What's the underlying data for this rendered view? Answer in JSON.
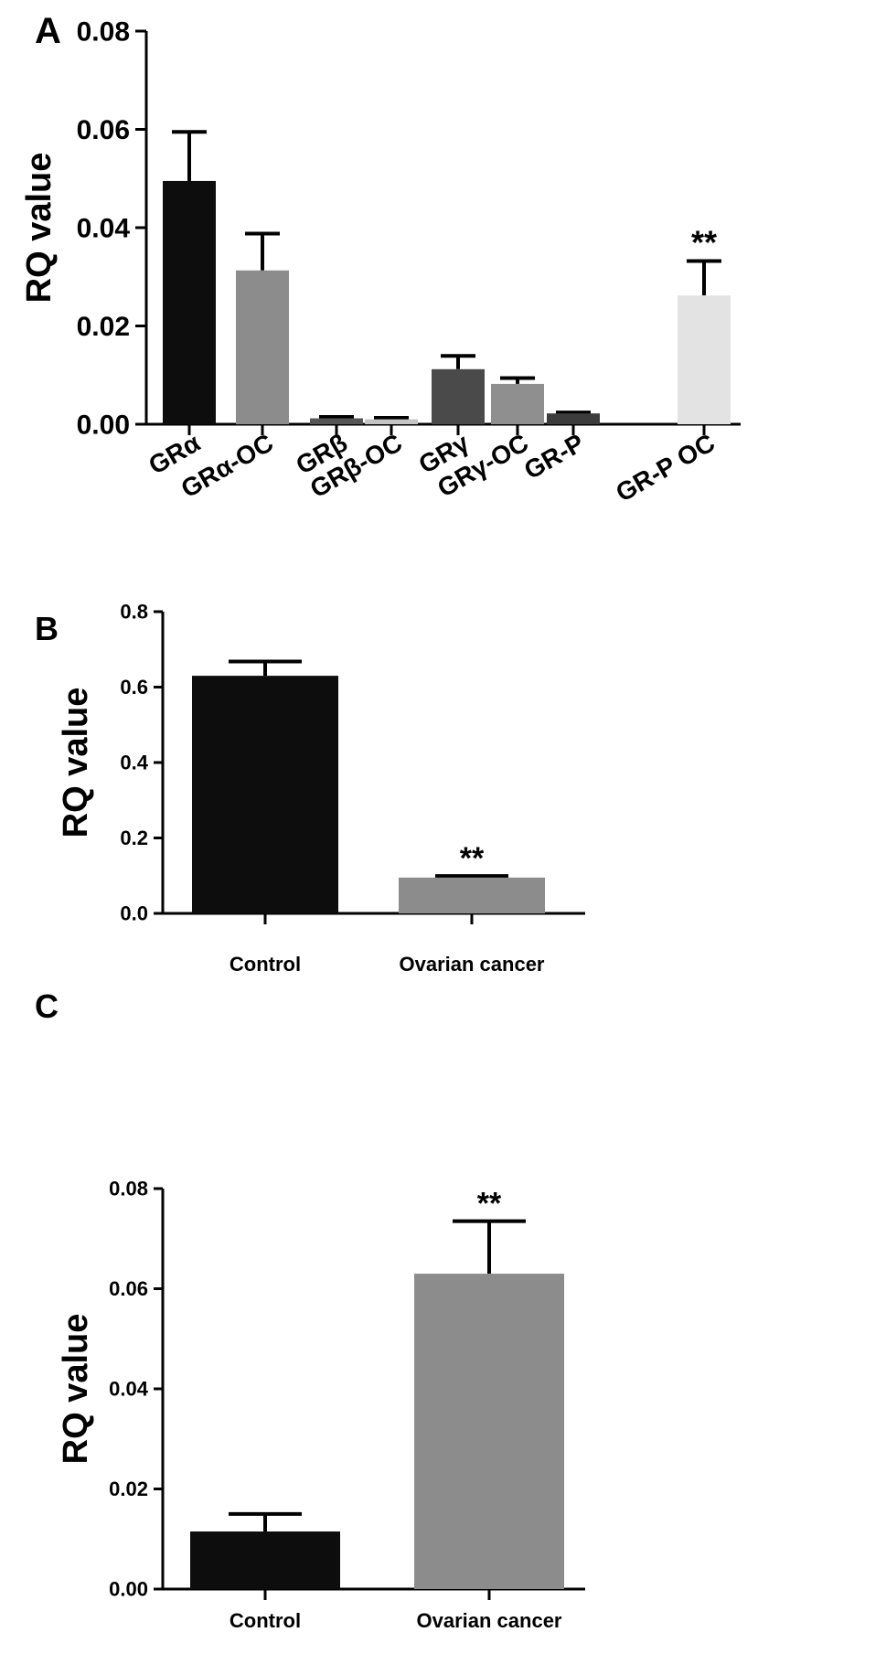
{
  "chart_data": [
    {
      "panel": "A",
      "type": "bar",
      "ylabel": "RQ value",
      "ylim": [
        0,
        0.08
      ],
      "yticks": [
        "0.00",
        "0.02",
        "0.04",
        "0.06",
        "0.08"
      ],
      "categories": [
        "GRα",
        "GRα-OC",
        "GRβ",
        "GRβ-OC",
        "GRγ",
        "GRγ-OC",
        "GR-P",
        "GR-P OC"
      ],
      "values": [
        0.0495,
        0.0313,
        0.0012,
        0.001,
        0.0112,
        0.0082,
        0.0022,
        0.0262
      ],
      "errors": [
        0.01,
        0.0075,
        0.0003,
        0.0003,
        0.0027,
        0.0012,
        0.0002,
        0.007
      ],
      "colors": [
        "#0d0d0d",
        "#8c8c8c",
        "#555555",
        "#c4c4c4",
        "#4a4a4a",
        "#8f8f8f",
        "#3c3c3c",
        "#e3e3e3"
      ],
      "annotations": [
        {
          "category": "GR-P OC",
          "text": "**"
        }
      ]
    },
    {
      "panel": "B",
      "type": "bar",
      "ylabel": "RQ value",
      "ylim": [
        0,
        0.8
      ],
      "yticks": [
        "0.0",
        "0.2",
        "0.4",
        "0.6",
        "0.8"
      ],
      "categories": [
        "Control",
        "Ovarian cancer"
      ],
      "values": [
        0.63,
        0.095
      ],
      "errors": [
        0.038,
        0.004
      ],
      "colors": [
        "#0d0d0d",
        "#8c8c8c"
      ],
      "annotations": [
        {
          "category": "Ovarian cancer",
          "text": "**"
        }
      ]
    },
    {
      "panel": "C",
      "type": "bar",
      "ylabel": "RQ value",
      "ylim": [
        0,
        0.08
      ],
      "yticks": [
        "0.00",
        "0.02",
        "0.04",
        "0.06",
        "0.08"
      ],
      "categories": [
        "Control",
        "Ovarian cancer"
      ],
      "values": [
        0.0115,
        0.063
      ],
      "errors": [
        0.0035,
        0.0105
      ],
      "colors": [
        "#0d0d0d",
        "#8c8c8c"
      ],
      "annotations": [
        {
          "category": "Ovarian cancer",
          "text": "**"
        }
      ]
    }
  ]
}
